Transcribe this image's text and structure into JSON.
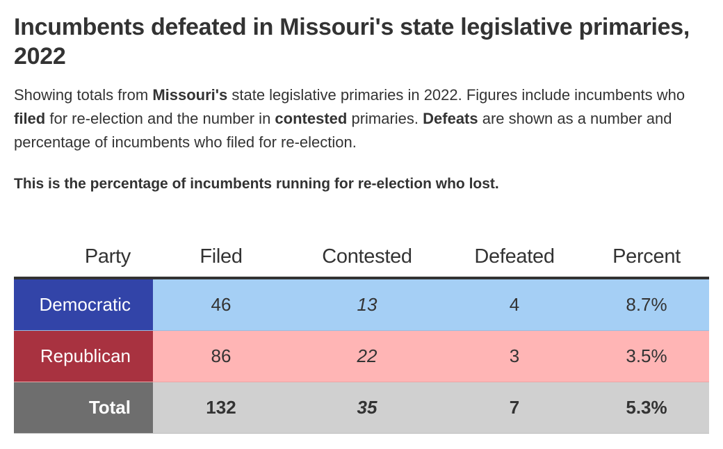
{
  "header": {
    "title": "Incumbents defeated in Missouri's state legislative primaries, 2022",
    "description": {
      "p1": "Showing totals from ",
      "b1": "Missouri's",
      "p2": " state legislative primaries in 2022. Figures include incumbents who ",
      "b2": "filed",
      "p3": " for re-election and the number in ",
      "b3": "contested",
      "p4": " primaries. ",
      "b4": "Defeats",
      "p5": " are shown as a number and percentage of incumbents who filed for re-election."
    },
    "note": "This is the percentage of incumbents running for re-election who lost."
  },
  "colors": {
    "democratic_label_bg": "#3244a8",
    "democratic_row_bg": "#a5cff5",
    "republican_label_bg": "#a83240",
    "republican_row_bg": "#ffb5b5",
    "total_label_bg": "#6e6e6e",
    "total_row_bg": "#d0d0d0"
  },
  "chart_data": {
    "type": "table",
    "columns": [
      "Party",
      "Filed",
      "Contested",
      "Defeated",
      "Percent"
    ],
    "rows": [
      {
        "party": "Democratic",
        "filed": "46",
        "contested": "13",
        "defeated": "4",
        "percent": "8.7%"
      },
      {
        "party": "Republican",
        "filed": "86",
        "contested": "22",
        "defeated": "3",
        "percent": "3.5%"
      },
      {
        "party": "Total",
        "filed": "132",
        "contested": "35",
        "defeated": "7",
        "percent": "5.3%"
      }
    ]
  }
}
